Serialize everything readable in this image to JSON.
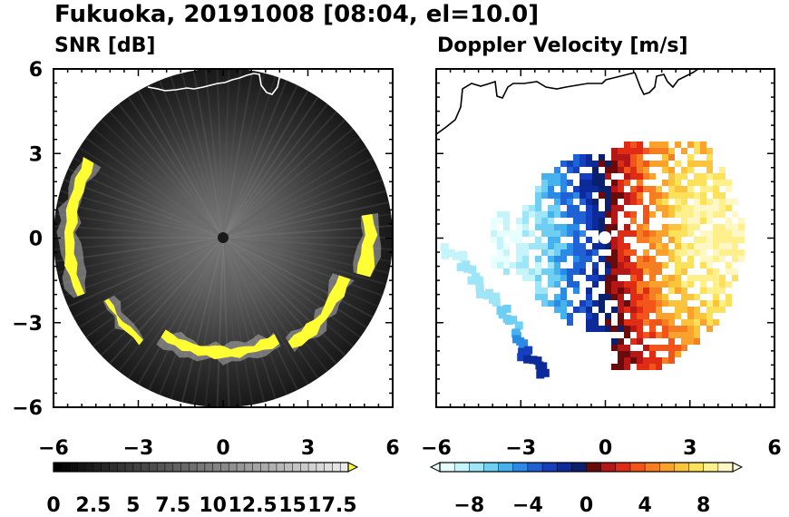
{
  "figure": {
    "title": "Fukuoka, 20191008 [08:04, el=10.0]"
  },
  "chart_data": [
    {
      "type": "heatmap",
      "title": "SNR [dB]",
      "projection": "radar PPI, circular domain",
      "xlim": [
        -6,
        6
      ],
      "ylim": [
        -6,
        6
      ],
      "xticks": [
        "−6",
        "−3",
        "0",
        "3",
        "6"
      ],
      "yticks": [
        "6",
        "3",
        "0",
        "−3",
        "−6"
      ],
      "range_radius": 6,
      "colorbar": {
        "min": 0,
        "max": 18.5,
        "step": 0.5,
        "extend": "max",
        "tick_labels": [
          "0",
          "2.5",
          "5",
          "7.5",
          "10",
          "12.5",
          "15",
          "17.5"
        ],
        "tick_values": [
          0,
          2.5,
          5,
          7.5,
          10,
          12.5,
          15,
          17.5
        ],
        "colormap": "black-to-white grayscale, yellow over-range"
      },
      "over_color": "#ffff33",
      "background_color": "#1c1c1c",
      "coastline_color": "#ffffff"
    },
    {
      "type": "heatmap",
      "title": "Doppler Velocity [m/s]",
      "projection": "radar PPI, circular domain",
      "xlim": [
        -6,
        6
      ],
      "ylim": [
        -6,
        6
      ],
      "xticks": [
        "−6",
        "−3",
        "0",
        "3",
        "6"
      ],
      "range_radius": 6,
      "colorbar": {
        "min": -10,
        "max": 10,
        "step": 1,
        "extend": "both",
        "tick_labels": [
          "−8",
          "−4",
          "0",
          "4",
          "8"
        ],
        "tick_values": [
          -8,
          -4,
          0,
          4,
          8
        ],
        "colormap": "diverging: light cyan → blue → navy (negative), dark red → orange → yellow → pale yellow (positive)"
      },
      "coastline_color": "#000000"
    }
  ]
}
